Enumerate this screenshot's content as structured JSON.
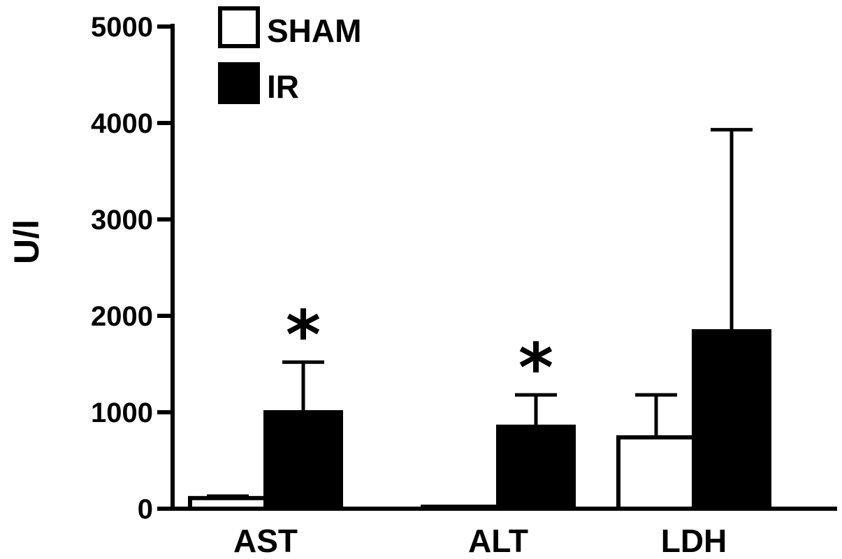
{
  "chart_data": {
    "type": "bar",
    "title": "",
    "xlabel": "",
    "ylabel": "U/l",
    "ylim": [
      0,
      5000
    ],
    "yticks": [
      "0",
      "1000",
      "2000",
      "3000",
      "4000",
      "5000"
    ],
    "grid": false,
    "legend": "top-left",
    "categories": [
      "AST",
      "ALT",
      "LDH"
    ],
    "series": [
      {
        "name": "SHAM",
        "fill": "#ffffff",
        "stroke": "#000000",
        "values": [
          110,
          20,
          740
        ],
        "errors": [
          20,
          0,
          440
        ]
      },
      {
        "name": "IR",
        "fill": "#000000",
        "stroke": "#000000",
        "values": [
          1000,
          850,
          1840
        ],
        "errors": [
          520,
          330,
          2090
        ]
      }
    ],
    "annotations": [
      {
        "category": 0,
        "series": 1,
        "text": "*"
      },
      {
        "category": 1,
        "series": 1,
        "text": "*"
      }
    ]
  }
}
